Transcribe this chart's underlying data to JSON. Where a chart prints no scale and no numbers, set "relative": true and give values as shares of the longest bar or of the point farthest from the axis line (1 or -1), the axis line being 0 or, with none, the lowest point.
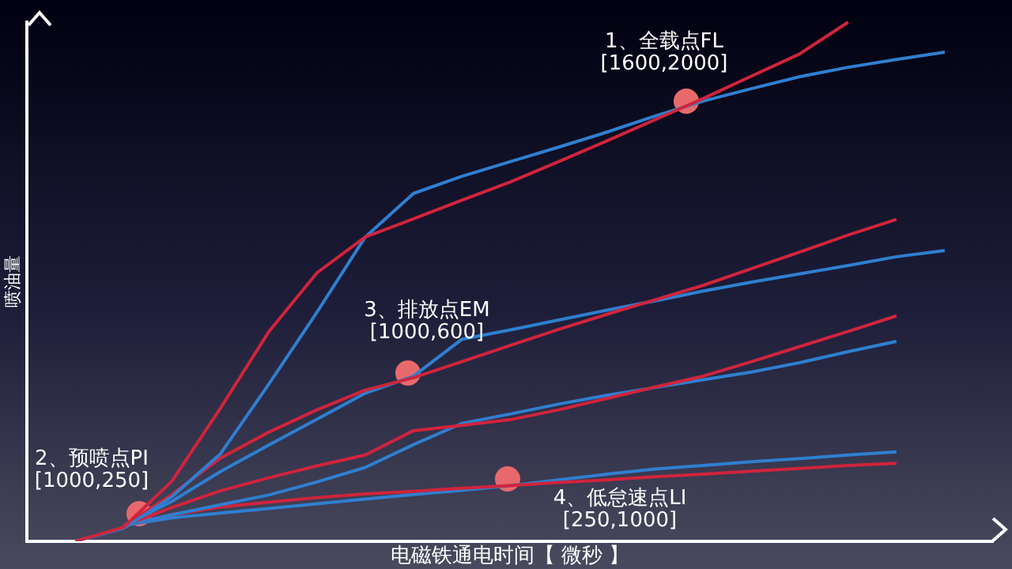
{
  "chart_data": {
    "type": "line",
    "relative": true,
    "xlabel": "电磁铁通电时间【 微秒 】",
    "ylabel": "喷油量",
    "grid": false,
    "legend": false,
    "marker": "none",
    "line_style": "solid",
    "categories": [
      null,
      null,
      null,
      null,
      null,
      null,
      null,
      null,
      null,
      null,
      null,
      null,
      null,
      null,
      null,
      null,
      null,
      null,
      null,
      null,
      null
    ],
    "series": [
      {
        "color": "#d0243c",
        "values": [
          null,
          0,
          0.027,
          0.116,
          0.256,
          0.403,
          0.517,
          0.586,
          0.621,
          0.657,
          0.692,
          0.731,
          0.771,
          0.812,
          0.853,
          0.896,
          0.939,
          1,
          null,
          null,
          null
        ]
      },
      {
        "color": "#2f7fd0",
        "values": [
          null,
          0,
          0.025,
          0.086,
          0.168,
          0.302,
          0.441,
          0.586,
          0.67,
          0.703,
          0.731,
          0.759,
          0.788,
          0.819,
          0.848,
          0.872,
          0.895,
          0.913,
          0.928,
          0.942,
          null
        ]
      },
      {
        "color": "#d0243c",
        "values": [
          null,
          null,
          0.03,
          0.09,
          0.16,
          0.21,
          0.253,
          0.291,
          0.315,
          0.346,
          0.377,
          0.408,
          0.437,
          0.465,
          0.493,
          0.525,
          0.557,
          0.59,
          0.62,
          null,
          null
        ]
      },
      {
        "color": "#2f7fd0",
        "values": [
          null,
          null,
          0.03,
          0.077,
          0.134,
          0.185,
          0.235,
          0.285,
          0.318,
          0.389,
          0.407,
          0.426,
          0.445,
          0.463,
          0.482,
          0.499,
          0.515,
          0.531,
          0.548,
          0.56,
          null
        ]
      },
      {
        "color": "#d0243c",
        "values": [
          null,
          null,
          0.03,
          0.065,
          0.097,
          0.122,
          0.145,
          0.166,
          0.213,
          0.223,
          0.234,
          0.253,
          0.275,
          0.297,
          0.318,
          0.346,
          0.375,
          0.404,
          0.434,
          null,
          null
        ]
      },
      {
        "color": "#2f7fd0",
        "values": [
          null,
          null,
          0.03,
          0.051,
          0.07,
          0.089,
          0.114,
          0.142,
          0.186,
          0.227,
          0.245,
          0.264,
          0.281,
          0.296,
          0.311,
          0.326,
          0.344,
          0.365,
          0.385,
          null,
          null
        ]
      },
      {
        "color": "#d0243c",
        "values": [
          null,
          null,
          0.03,
          0.051,
          0.066,
          0.075,
          0.084,
          0.091,
          0.096,
          0.102,
          0.107,
          0.113,
          0.118,
          0.124,
          0.129,
          0.135,
          0.14,
          0.146,
          0.15,
          null,
          null
        ]
      },
      {
        "color": "#2f7fd0",
        "values": [
          null,
          null,
          0.03,
          0.045,
          0.054,
          0.063,
          0.072,
          0.081,
          0.09,
          0.098,
          0.107,
          0.118,
          0.129,
          0.139,
          0.146,
          0.153,
          0.159,
          0.166,
          0.172,
          null,
          null
        ]
      }
    ],
    "annotations": [
      "1、全载点FL\n[1600,2000]",
      "2、预喷点PI\n[1000,250]",
      "3、排放点EM\n[1000,600]",
      "4、低怠速点LI\n[250,1000]"
    ]
  }
}
